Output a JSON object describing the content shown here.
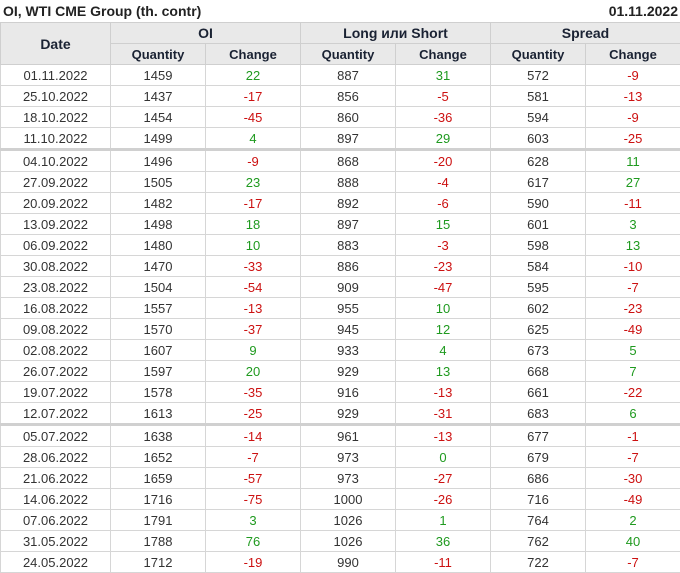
{
  "title": "OI, WTI CME Group (th. contr)",
  "date": "01.11.2022",
  "colors": {
    "positive": "#1f9a1f",
    "negative": "#cc1111",
    "header_bg": "#e9e9e9"
  },
  "headers": {
    "date": "Date",
    "groups": [
      "OI",
      "Long или Short",
      "Spread"
    ],
    "quantity": "Quantity",
    "change": "Change"
  },
  "rows": [
    {
      "date": "01.11.2022",
      "oi_q": "1459",
      "oi_c": "22",
      "ls_q": "887",
      "ls_c": "31",
      "sp_q": "572",
      "sp_c": "-9"
    },
    {
      "date": "25.10.2022",
      "oi_q": "1437",
      "oi_c": "-17",
      "ls_q": "856",
      "ls_c": "-5",
      "sp_q": "581",
      "sp_c": "-13"
    },
    {
      "date": "18.10.2022",
      "oi_q": "1454",
      "oi_c": "-45",
      "ls_q": "860",
      "ls_c": "-36",
      "sp_q": "594",
      "sp_c": "-9"
    },
    {
      "date": "11.10.2022",
      "oi_q": "1499",
      "oi_c": "4",
      "ls_q": "897",
      "ls_c": "29",
      "sp_q": "603",
      "sp_c": "-25"
    },
    {
      "date": "04.10.2022",
      "oi_q": "1496",
      "oi_c": "-9",
      "ls_q": "868",
      "ls_c": "-20",
      "sp_q": "628",
      "sp_c": "11",
      "sep": true
    },
    {
      "date": "27.09.2022",
      "oi_q": "1505",
      "oi_c": "23",
      "ls_q": "888",
      "ls_c": "-4",
      "sp_q": "617",
      "sp_c": "27"
    },
    {
      "date": "20.09.2022",
      "oi_q": "1482",
      "oi_c": "-17",
      "ls_q": "892",
      "ls_c": "-6",
      "sp_q": "590",
      "sp_c": "-11"
    },
    {
      "date": "13.09.2022",
      "oi_q": "1498",
      "oi_c": "18",
      "ls_q": "897",
      "ls_c": "15",
      "sp_q": "601",
      "sp_c": "3"
    },
    {
      "date": "06.09.2022",
      "oi_q": "1480",
      "oi_c": "10",
      "ls_q": "883",
      "ls_c": "-3",
      "sp_q": "598",
      "sp_c": "13"
    },
    {
      "date": "30.08.2022",
      "oi_q": "1470",
      "oi_c": "-33",
      "ls_q": "886",
      "ls_c": "-23",
      "sp_q": "584",
      "sp_c": "-10"
    },
    {
      "date": "23.08.2022",
      "oi_q": "1504",
      "oi_c": "-54",
      "ls_q": "909",
      "ls_c": "-47",
      "sp_q": "595",
      "sp_c": "-7"
    },
    {
      "date": "16.08.2022",
      "oi_q": "1557",
      "oi_c": "-13",
      "ls_q": "955",
      "ls_c": "10",
      "sp_q": "602",
      "sp_c": "-23"
    },
    {
      "date": "09.08.2022",
      "oi_q": "1570",
      "oi_c": "-37",
      "ls_q": "945",
      "ls_c": "12",
      "sp_q": "625",
      "sp_c": "-49"
    },
    {
      "date": "02.08.2022",
      "oi_q": "1607",
      "oi_c": "9",
      "ls_q": "933",
      "ls_c": "4",
      "sp_q": "673",
      "sp_c": "5"
    },
    {
      "date": "26.07.2022",
      "oi_q": "1597",
      "oi_c": "20",
      "ls_q": "929",
      "ls_c": "13",
      "sp_q": "668",
      "sp_c": "7"
    },
    {
      "date": "19.07.2022",
      "oi_q": "1578",
      "oi_c": "-35",
      "ls_q": "916",
      "ls_c": "-13",
      "sp_q": "661",
      "sp_c": "-22"
    },
    {
      "date": "12.07.2022",
      "oi_q": "1613",
      "oi_c": "-25",
      "ls_q": "929",
      "ls_c": "-31",
      "sp_q": "683",
      "sp_c": "6"
    },
    {
      "date": "05.07.2022",
      "oi_q": "1638",
      "oi_c": "-14",
      "ls_q": "961",
      "ls_c": "-13",
      "sp_q": "677",
      "sp_c": "-1",
      "sep": true
    },
    {
      "date": "28.06.2022",
      "oi_q": "1652",
      "oi_c": "-7",
      "ls_q": "973",
      "ls_c": "0",
      "sp_q": "679",
      "sp_c": "-7"
    },
    {
      "date": "21.06.2022",
      "oi_q": "1659",
      "oi_c": "-57",
      "ls_q": "973",
      "ls_c": "-27",
      "sp_q": "686",
      "sp_c": "-30"
    },
    {
      "date": "14.06.2022",
      "oi_q": "1716",
      "oi_c": "-75",
      "ls_q": "1000",
      "ls_c": "-26",
      "sp_q": "716",
      "sp_c": "-49"
    },
    {
      "date": "07.06.2022",
      "oi_q": "1791",
      "oi_c": "3",
      "ls_q": "1026",
      "ls_c": "1",
      "sp_q": "764",
      "sp_c": "2"
    },
    {
      "date": "31.05.2022",
      "oi_q": "1788",
      "oi_c": "76",
      "ls_q": "1026",
      "ls_c": "36",
      "sp_q": "762",
      "sp_c": "40"
    },
    {
      "date": "24.05.2022",
      "oi_q": "1712",
      "oi_c": "-19",
      "ls_q": "990",
      "ls_c": "-11",
      "sp_q": "722",
      "sp_c": "-7"
    }
  ]
}
